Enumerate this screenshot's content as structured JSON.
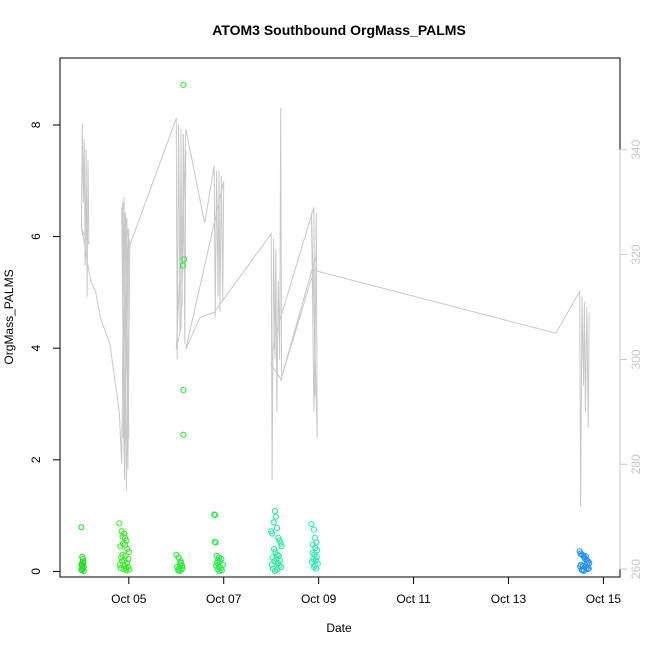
{
  "chart_data": {
    "type": "scatter",
    "title": "ATOM3 Southbound OrgMass_PALMS",
    "xlabel": "Date",
    "ylabel": "OrgMass_PALMS",
    "x_ticks": [
      "Oct 05",
      "Oct 07",
      "Oct 09",
      "Oct 11",
      "Oct 13",
      "Oct 15"
    ],
    "x_tick_days": [
      5,
      7,
      9,
      11,
      13,
      15
    ],
    "xlim_days": [
      3.55,
      15.35
    ],
    "ylim": [
      -0.1,
      9.2
    ],
    "y_ticks": [
      0,
      2,
      4,
      6,
      8
    ],
    "y2lim": [
      258.5,
      357.5
    ],
    "y2_ticks": [
      260,
      280,
      300,
      320,
      340
    ],
    "y2_color": "#c8c8c8",
    "series": [
      {
        "color": "#22dd22",
        "marker": "open-circle",
        "x": [
          4.0,
          4.02,
          4.04,
          4.0,
          4.05,
          4.03,
          4.01,
          4.04,
          4.02,
          4.0,
          4.03,
          4.05,
          4.02,
          4.01
        ],
        "y": [
          0.79,
          0.26,
          0.18,
          0.12,
          0.08,
          0.05,
          0.02,
          0.15,
          0.1,
          0.03,
          0.22,
          0.01,
          0.06,
          0.14
        ]
      },
      {
        "color": "#33ee22",
        "marker": "open-circle",
        "x": [
          4.8,
          4.85,
          4.9,
          4.92,
          4.95,
          4.88,
          4.82,
          4.97,
          5.0,
          4.87,
          4.93,
          4.84,
          4.99,
          4.9,
          4.86,
          4.96,
          4.81,
          4.91,
          4.98,
          4.83,
          4.94,
          4.89,
          5.01,
          4.95,
          4.87,
          4.92
        ],
        "y": [
          0.86,
          0.72,
          0.68,
          0.6,
          0.55,
          0.5,
          0.45,
          0.4,
          0.35,
          0.3,
          0.28,
          0.25,
          0.22,
          0.2,
          0.18,
          0.15,
          0.12,
          0.1,
          0.08,
          0.06,
          0.05,
          0.04,
          0.03,
          0.02,
          0.62,
          0.48
        ]
      },
      {
        "color": "#22ee33",
        "marker": "open-circle",
        "x": [
          6.15,
          6.16,
          6.14,
          6.15,
          6.15,
          6.0,
          6.05,
          6.1,
          6.08,
          6.12,
          6.02,
          6.06,
          6.11,
          6.04,
          6.09,
          6.13,
          6.07
        ],
        "y": [
          8.72,
          5.59,
          5.48,
          3.25,
          2.45,
          0.3,
          0.25,
          0.15,
          0.12,
          0.1,
          0.08,
          0.05,
          0.03,
          0.02,
          0.18,
          0.06,
          0.01
        ]
      },
      {
        "color": "#22ee44",
        "marker": "open-circle",
        "x": [
          6.8,
          6.82,
          6.81,
          6.83,
          6.85,
          6.9,
          6.95,
          6.88,
          6.92,
          6.86,
          6.98,
          6.84,
          6.9,
          6.94,
          6.87,
          6.96,
          6.91
        ],
        "y": [
          1.02,
          1.01,
          0.53,
          0.52,
          0.28,
          0.25,
          0.22,
          0.2,
          0.18,
          0.15,
          0.12,
          0.1,
          0.08,
          0.06,
          0.04,
          0.02,
          0.01
        ]
      },
      {
        "color": "#22ee99",
        "marker": "open-circle",
        "x": [
          8.08,
          8.1,
          8.05,
          8.12,
          8.0,
          8.02,
          8.15,
          8.18,
          8.2,
          8.22,
          8.06,
          8.09,
          8.13,
          8.16,
          8.03,
          8.11,
          8.19,
          8.07,
          8.14,
          8.01,
          8.17,
          8.21,
          8.04,
          8.12,
          8.08
        ],
        "y": [
          1.08,
          0.98,
          0.88,
          0.78,
          0.72,
          0.68,
          0.6,
          0.55,
          0.5,
          0.45,
          0.4,
          0.35,
          0.3,
          0.28,
          0.25,
          0.22,
          0.2,
          0.18,
          0.15,
          0.12,
          0.1,
          0.08,
          0.05,
          0.03,
          0.01
        ]
      },
      {
        "color": "#22eeaa",
        "marker": "open-circle",
        "x": [
          8.85,
          8.9,
          8.92,
          8.95,
          8.88,
          8.93,
          8.97,
          8.87,
          8.91,
          8.96,
          8.89,
          8.94,
          8.86,
          8.98,
          8.92,
          8.9,
          8.95
        ],
        "y": [
          0.85,
          0.75,
          0.6,
          0.52,
          0.48,
          0.42,
          0.38,
          0.33,
          0.3,
          0.26,
          0.22,
          0.2,
          0.17,
          0.14,
          0.11,
          0.08,
          0.05
        ]
      },
      {
        "color": "#1e90ff",
        "marker": "open-circle",
        "x": [
          14.5,
          14.52,
          14.55,
          14.58,
          14.6,
          14.62,
          14.65,
          14.68,
          14.7,
          14.53,
          14.57,
          14.61,
          14.64,
          14.67,
          14.56,
          14.59,
          14.63,
          14.66,
          14.51,
          14.69,
          14.54
        ],
        "y": [
          0.36,
          0.32,
          0.3,
          0.28,
          0.25,
          0.22,
          0.2,
          0.18,
          0.15,
          0.12,
          0.1,
          0.08,
          0.06,
          0.04,
          0.02,
          0.01,
          0.27,
          0.14,
          0.09,
          0.05,
          0.03
        ]
      }
    ],
    "line_series_y2": {
      "color": "#c8c8c8",
      "x": [
        4.0,
        4.02,
        4.04,
        4.06,
        4.08,
        4.1,
        4.12,
        4.14,
        4.16,
        4.0,
        4.05,
        4.1,
        4.2,
        4.3,
        4.4,
        4.6,
        4.8,
        4.85,
        4.9,
        4.95,
        5.0,
        4.88,
        4.93,
        4.98,
        5.02,
        4.87,
        4.91,
        4.96,
        5.0,
        4.85,
        4.9,
        4.95,
        6.0,
        6.02,
        6.05,
        6.08,
        6.1,
        6.12,
        6.15,
        6.18,
        6.2,
        6.0,
        6.1,
        6.2,
        6.6,
        6.8,
        6.82,
        6.85,
        6.88,
        6.9,
        6.92,
        6.95,
        6.98,
        7.0,
        6.2,
        6.5,
        6.8,
        8.0,
        8.02,
        8.05,
        8.08,
        8.1,
        8.12,
        8.15,
        8.18,
        8.2,
        8.22,
        8.0,
        8.1,
        8.9,
        8.92,
        8.95,
        8.97,
        8.85,
        8.9,
        8.95,
        8.2,
        8.6,
        8.9,
        14.0,
        14.5,
        14.52,
        14.55,
        14.58,
        14.6,
        14.62,
        14.65,
        14.68,
        14.7
      ],
      "y": [
        325,
        345,
        330,
        342,
        318,
        340,
        312,
        338,
        322,
        325,
        323,
        320,
        315,
        313,
        308,
        303,
        290,
        280,
        331,
        275,
        325,
        285,
        328,
        279,
        322,
        330,
        277,
        327,
        285,
        329,
        282,
        320,
        346,
        300,
        345,
        305,
        344,
        310,
        343,
        303,
        340,
        302,
        306,
        344,
        326,
        337,
        308,
        336,
        312,
        336,
        309,
        335,
        311,
        334,
        302,
        308,
        309,
        324,
        277,
        323,
        300,
        321,
        290,
        315,
        300,
        348,
        296,
        299,
        305,
        329,
        293,
        328,
        285,
        328,
        290,
        320,
        296,
        308,
        317,
        305,
        313,
        272,
        312,
        295,
        311,
        290,
        310,
        287,
        309
      ]
    }
  }
}
